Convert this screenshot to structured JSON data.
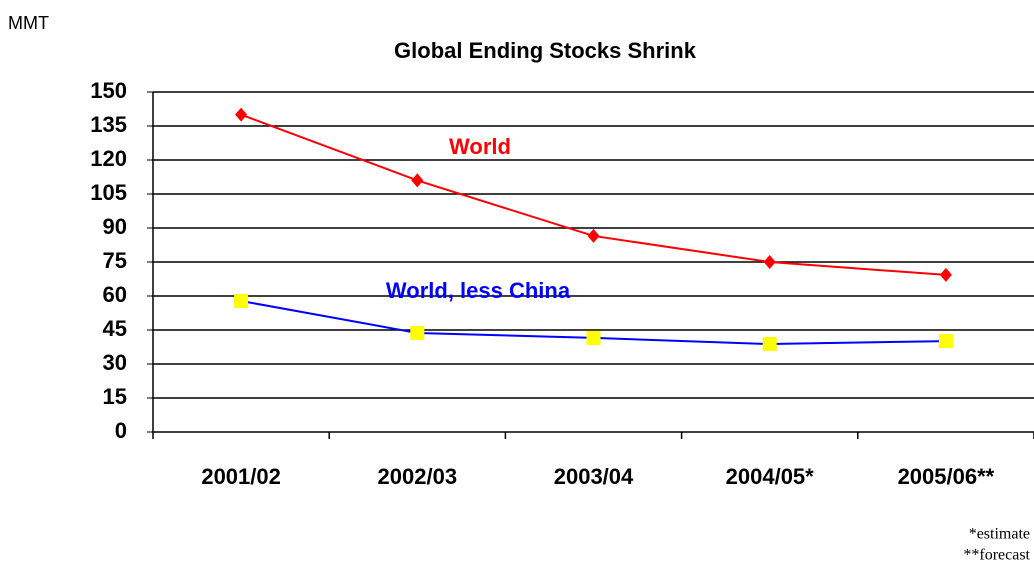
{
  "chart_data": {
    "type": "line",
    "title": "Global Ending Stocks Shrink",
    "y_label": "MMT",
    "categories": [
      "2001/02",
      "2002/03",
      "2003/04",
      "2004/05*",
      "2005/06**"
    ],
    "series": [
      {
        "name": "World",
        "color": "#ff0000",
        "marker": "diamond",
        "marker_color": "#ff0000",
        "values": [
          140,
          111,
          86.5,
          75,
          69.3
        ]
      },
      {
        "name": "World, less China",
        "color": "#0000ff",
        "marker": "square",
        "marker_color": "#ffff00",
        "values": [
          57.8,
          43.7,
          41.5,
          38.8,
          40.1
        ]
      }
    ],
    "ylim": [
      0,
      150
    ],
    "yticks": [
      0,
      15,
      30,
      45,
      60,
      75,
      90,
      105,
      120,
      135,
      150
    ],
    "grid": true,
    "notes": [
      "*estimate",
      "**forecast"
    ]
  }
}
